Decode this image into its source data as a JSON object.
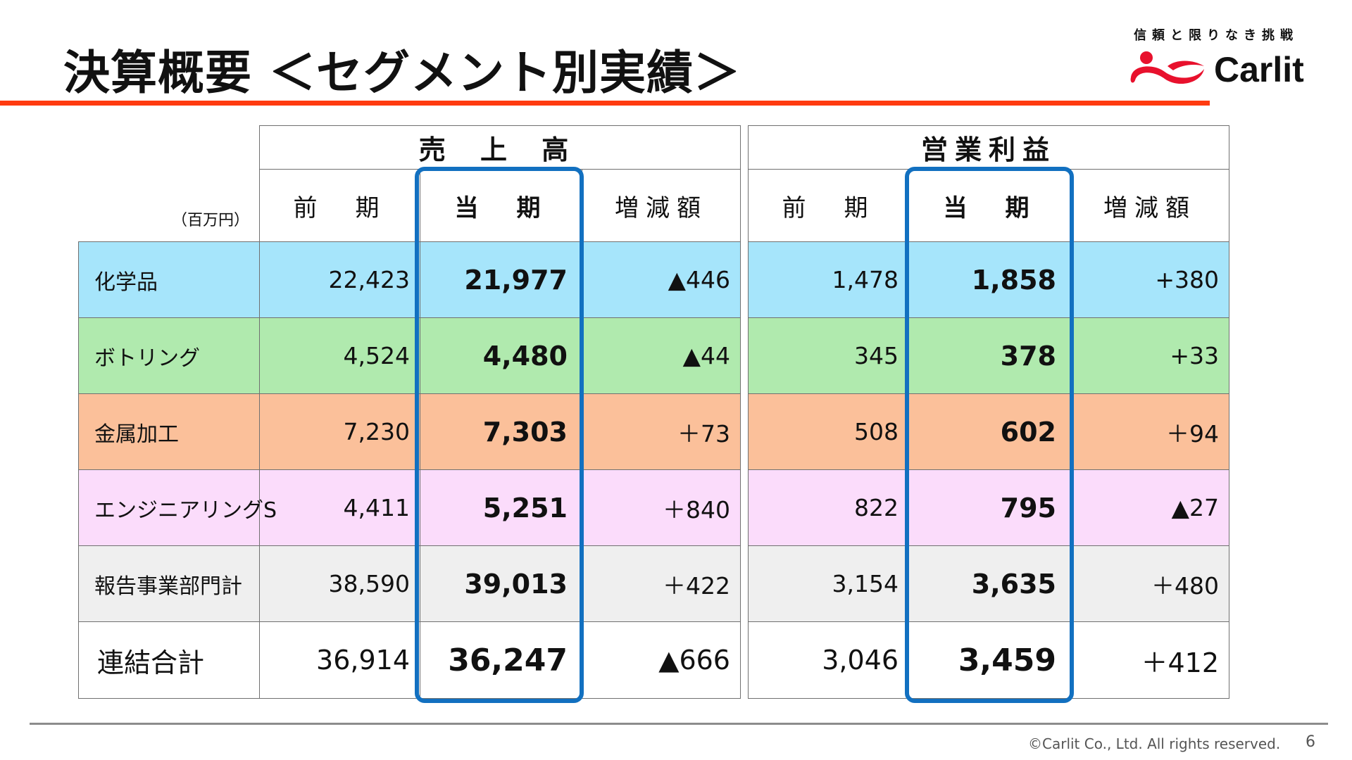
{
  "title": "決算概要 ＜セグメント別実績＞",
  "logo": {
    "tagline": "信頼と限りなき挑戦",
    "brand_name": "Carlit",
    "brand_color": "#e8112d"
  },
  "unit": "（百万円）",
  "groups": {
    "sales": "売 上 高",
    "op_profit": "営業利益"
  },
  "columns": {
    "prev": "前　期",
    "curr": "当　期",
    "diff": "増減額"
  },
  "rows": [
    {
      "label": "化学品",
      "sales_prev": "22,423",
      "sales_curr": "21,977",
      "sales_diff": "▲446",
      "op_prev": "1,478",
      "op_curr": "1,858",
      "op_diff": "+380",
      "color": "#a6e5fb"
    },
    {
      "label": "ボトリング",
      "sales_prev": "4,524",
      "sales_curr": "4,480",
      "sales_diff": "▲44",
      "op_prev": "345",
      "op_curr": "378",
      "op_diff": "+33",
      "color": "#b0eaae"
    },
    {
      "label": "金属加工",
      "sales_prev": "7,230",
      "sales_curr": "7,303",
      "sales_diff": "＋73",
      "op_prev": "508",
      "op_curr": "602",
      "op_diff": "＋94",
      "color": "#fbc09a"
    },
    {
      "label": "エンジニアリングS",
      "sales_prev": "4,411",
      "sales_curr": "5,251",
      "sales_diff": "＋840",
      "op_prev": "822",
      "op_curr": "795",
      "op_diff": "▲27",
      "color": "#fbdcfb"
    },
    {
      "label": "報告事業部門計",
      "sales_prev": "38,590",
      "sales_curr": "39,013",
      "sales_diff": "＋422",
      "op_prev": "3,154",
      "op_curr": "3,635",
      "op_diff": "＋480",
      "color": "#efefef"
    },
    {
      "label": "連結合計",
      "sales_prev": "36,914",
      "sales_curr": "36,247",
      "sales_diff": "▲666",
      "op_prev": "3,046",
      "op_curr": "3,459",
      "op_diff": "＋412",
      "color": "#ffffff"
    }
  ],
  "footer": {
    "copyright": "©Carlit Co., Ltd. All rights reserved.",
    "page": "6"
  },
  "colors": {
    "title_rule": "#ff3b10",
    "highlight": "#1270c0"
  }
}
